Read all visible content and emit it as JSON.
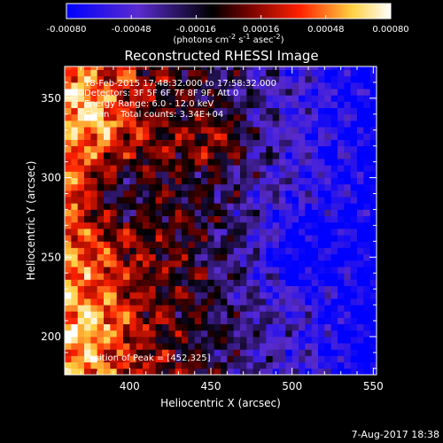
{
  "colorbar": {
    "ticks": [
      "-0.00080",
      "-0.00048",
      "-0.00016",
      "0.00016",
      "0.00048",
      "0.00080"
    ],
    "range": [
      -0.0008,
      0.0008
    ],
    "units_html": "(photons cm<tspan dy='-4' font-size='8'>-2</tspan><tspan dy='4'> s</tspan><tspan dy='-4' font-size='8'>-1</tspan><tspan dy='4'> asec</tspan><tspan dy='-4' font-size='8'>-2</tspan><tspan dy='4'>)</tspan>",
    "colors": [
      "#0000ff",
      "#5a2bd0",
      "#000000",
      "#7a0000",
      "#ff2000",
      "#ffd040",
      "#ffffff"
    ]
  },
  "chart_data": {
    "type": "heatmap",
    "title": "Reconstructed RHESSI Image",
    "xlabel": "Heliocentric X (arcsec)",
    "ylabel": "Heliocentric Y (arcsec)",
    "xlim": [
      360,
      552
    ],
    "ylim": [
      176,
      370
    ],
    "x_ticks": [
      400,
      450,
      500,
      550
    ],
    "y_ticks": [
      200,
      250,
      300,
      350
    ],
    "peak_position": [
      452,
      325
    ],
    "annotations": [
      "18-Feb-2015 17:48:32.000 to 17:58:32.000",
      "Detectors: 3F 5F 6F 7F 8F 9F, Att 0",
      "Energy Range: 6.0 - 12.0 keV",
      "Clean    Total counts: 3.34E+04"
    ],
    "peak_label": "Position of Peak = [452,325]"
  },
  "footer": {
    "timestamp": "7-Aug-2017 18:38"
  }
}
